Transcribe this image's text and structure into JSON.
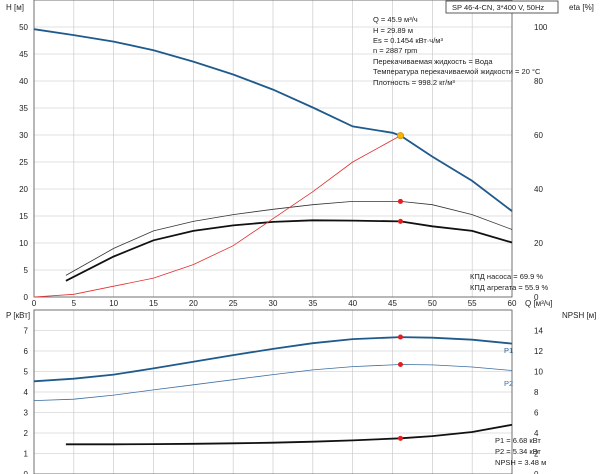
{
  "chart_data": [
    {
      "type": "line",
      "title": "SP 46-4-CN, 3*400 V, 50Hz",
      "xlabel": "Q [м³/ч]",
      "ylabel_left": "H [м]",
      "ylabel_right": "eta [%]",
      "xlim": [
        0,
        60
      ],
      "xticks": [
        0,
        5,
        10,
        15,
        20,
        25,
        30,
        35,
        40,
        45,
        50,
        55,
        60
      ],
      "ylim_left": [
        0,
        55
      ],
      "yticks_left": [
        0,
        5,
        10,
        15,
        20,
        25,
        30,
        35,
        40,
        45,
        50
      ],
      "ylim_right": [
        0,
        110
      ],
      "yticks_right": [
        0,
        20,
        40,
        60,
        80,
        100
      ],
      "grid": true,
      "series": [
        {
          "name": "",
          "axis": "left",
          "color": "#1f5a8c",
          "x": [
            0,
            5,
            10,
            15,
            20,
            25,
            30,
            35,
            40,
            45,
            46,
            50,
            55,
            60
          ],
          "y": [
            49.6,
            48.5,
            47.3,
            45.7,
            43.6,
            41.2,
            38.4,
            35.1,
            31.6,
            30.4,
            29.89,
            26.0,
            21.5,
            15.9
          ]
        },
        {
          "name": "",
          "axis": "right",
          "color": "#111111",
          "x": [
            4,
            10,
            15,
            20,
            25,
            30,
            35,
            40,
            46,
            50,
            55,
            60
          ],
          "y": [
            6,
            15,
            21,
            24.5,
            26.5,
            27.8,
            28.4,
            28.3,
            28.0,
            26.2,
            24.5,
            20.2
          ]
        },
        {
          "name": "",
          "axis": "right",
          "color": "#333333",
          "x": [
            4,
            10,
            15,
            20,
            25,
            30,
            35,
            40,
            46,
            50,
            55,
            60
          ],
          "y": [
            8,
            18,
            24.5,
            28,
            30.5,
            32.5,
            34.2,
            35.4,
            35.4,
            34.2,
            30.5,
            25
          ]
        },
        {
          "name": "",
          "axis": "left",
          "color": "#e03030",
          "x": [
            0,
            5,
            10,
            15,
            20,
            25,
            30,
            35,
            40,
            46
          ],
          "y": [
            0,
            0.5,
            2.0,
            3.5,
            6.0,
            9.5,
            14.5,
            19.5,
            25.0,
            29.89
          ]
        }
      ],
      "operating_point": {
        "x": 46,
        "h": 29.89
      },
      "info_lines": [
        "Q = 45.9 м³/ч",
        "H = 29.89 м",
        "Es = 0.1454 кВт·ч/м³",
        "n = 2887 rpm",
        "Перекачиваемая жидкость = Вода",
        "Температура перекачиваемой жидкости = 20 °C",
        "Плотность = 998.2 кг/м³"
      ],
      "efficiency_labels": [
        "КПД насоса = 69.9 %",
        "КПД агрегата = 55.9 %"
      ]
    },
    {
      "type": "line",
      "title": "",
      "xlabel": "",
      "ylabel_left": "P [кВт]",
      "ylabel_right": "NPSH [м]",
      "xlim": [
        0,
        60
      ],
      "ylim_left": [
        0,
        8
      ],
      "yticks_left": [
        0,
        1,
        2,
        3,
        4,
        5,
        6,
        7
      ],
      "ylim_right": [
        0,
        16
      ],
      "yticks_right": [
        0,
        2,
        4,
        6,
        8,
        10,
        12,
        14
      ],
      "grid": true,
      "series": [
        {
          "name": "P1",
          "axis": "left",
          "color": "#1f5a8c",
          "x": [
            0,
            5,
            10,
            15,
            20,
            25,
            30,
            35,
            40,
            46,
            50,
            55,
            60
          ],
          "y": [
            4.52,
            4.65,
            4.85,
            5.15,
            5.48,
            5.8,
            6.1,
            6.38,
            6.58,
            6.68,
            6.65,
            6.55,
            6.36
          ]
        },
        {
          "name": "P2",
          "axis": "left",
          "color": "#3a6ea0",
          "x": [
            0,
            5,
            10,
            15,
            20,
            25,
            30,
            35,
            40,
            46,
            50,
            55,
            60
          ],
          "y": [
            3.58,
            3.65,
            3.85,
            4.1,
            4.35,
            4.6,
            4.85,
            5.08,
            5.24,
            5.34,
            5.32,
            5.22,
            5.05
          ]
        },
        {
          "name": "",
          "axis": "right",
          "color": "#111111",
          "x": [
            4,
            10,
            15,
            20,
            25,
            30,
            35,
            40,
            46,
            50,
            55,
            60
          ],
          "y": [
            2.9,
            2.9,
            2.92,
            2.95,
            3.0,
            3.05,
            3.15,
            3.28,
            3.48,
            3.7,
            4.1,
            4.8
          ]
        }
      ],
      "operating_point_x": 46,
      "info_lines": [
        "P1 = 6.68 кВт",
        "P2 = 5.34 кВт",
        "NPSH = 3.48 м"
      ]
    }
  ]
}
